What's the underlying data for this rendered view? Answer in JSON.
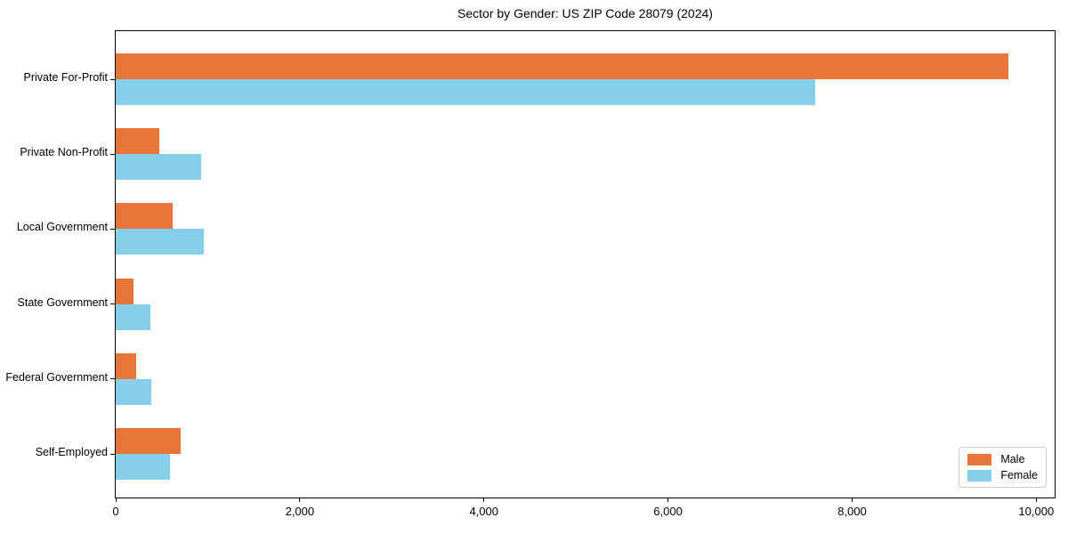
{
  "chart_data": {
    "type": "bar",
    "orientation": "horizontal",
    "title": "Sector by Gender: US ZIP Code 28079 (2024)",
    "categories": [
      "Private For-Profit",
      "Private Non-Profit",
      "Local Government",
      "State Government",
      "Federal Government",
      "Self-Employed"
    ],
    "series": [
      {
        "name": "Male",
        "color": "#E8763B",
        "values": [
          9700,
          470,
          620,
          190,
          220,
          710
        ]
      },
      {
        "name": "Female",
        "color": "#87CEEB",
        "values": [
          7600,
          925,
          960,
          375,
          385,
          590
        ]
      }
    ],
    "xlim": [
      0,
      10200
    ],
    "xticks": [
      0,
      2000,
      4000,
      6000,
      8000,
      10000
    ],
    "xtick_labels": [
      "0",
      "2,000",
      "4,000",
      "6,000",
      "8,000",
      "10,000"
    ],
    "xlabel": "",
    "ylabel": "",
    "grid": false,
    "legend": {
      "position": "lower-right",
      "entries": [
        "Male",
        "Female"
      ]
    }
  },
  "colors": {
    "male": "#E8763B",
    "female": "#87CEEB",
    "axis": "#000000",
    "legend_border": "#cccccc",
    "background": "#ffffff"
  }
}
